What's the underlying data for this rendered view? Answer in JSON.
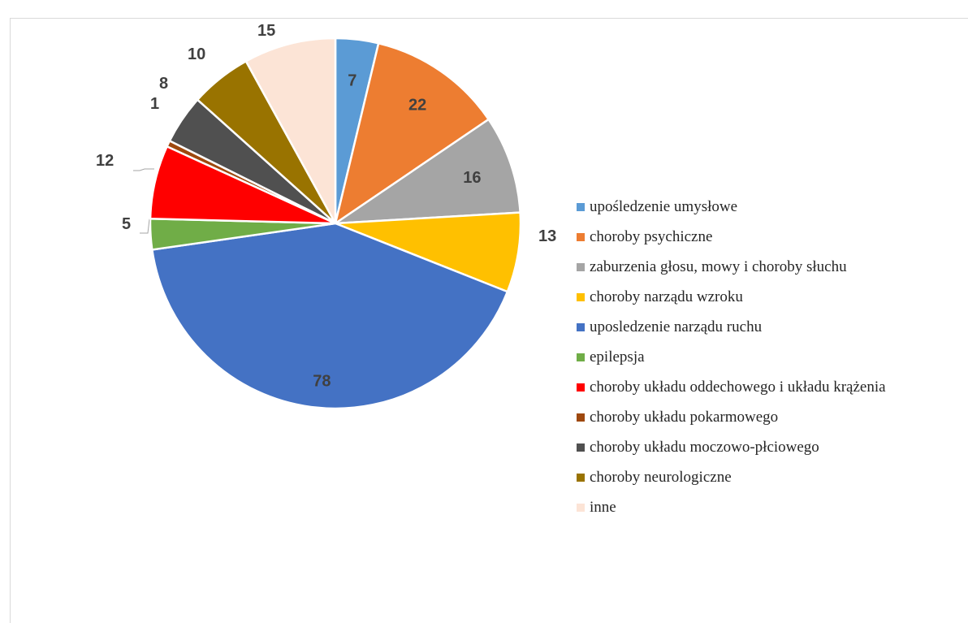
{
  "chart_data": {
    "type": "pie",
    "title": "",
    "legend_position": "right",
    "slices": [
      {
        "label": "upośledzenie umysłowe",
        "value": 7,
        "color": "#5B9BD5"
      },
      {
        "label": "choroby psychiczne",
        "value": 22,
        "color": "#ED7D31"
      },
      {
        "label": "zaburzenia głosu, mowy i choroby słuchu",
        "value": 16,
        "color": "#A5A5A5"
      },
      {
        "label": "choroby narządu wzroku",
        "value": 13,
        "color": "#FFC000"
      },
      {
        "label": "uposledzenie narządu ruchu",
        "value": 78,
        "color": "#4472C4"
      },
      {
        "label": "epilepsja",
        "value": 5,
        "color": "#70AD47"
      },
      {
        "label": "choroby układu oddechowego i układu krążenia",
        "value": 12,
        "color": "#FF0000"
      },
      {
        "label": "choroby układu pokarmowego",
        "value": 1,
        "color": "#9E480E"
      },
      {
        "label": "choroby układu moczowo-płciowego",
        "value": 8,
        "color": "#505050"
      },
      {
        "label": "choroby neurologiczne",
        "value": 10,
        "color": "#997300"
      },
      {
        "label": "inne",
        "value": 15,
        "color": "#FCE4D6"
      }
    ]
  }
}
